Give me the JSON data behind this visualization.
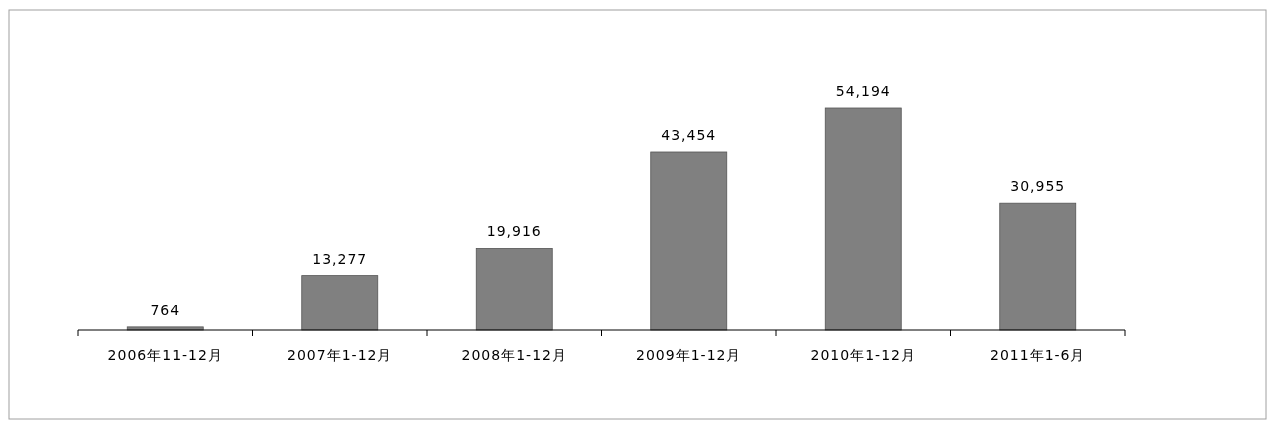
{
  "chart_data": {
    "type": "bar",
    "categories": [
      "2006年11-12月",
      "2007年1-12月",
      "2008年1-12月",
      "2009年1-12月",
      "2010年1-12月",
      "2011年1-6月"
    ],
    "values": [
      764,
      13277,
      19916,
      43454,
      54194,
      30955
    ],
    "value_labels": [
      "764",
      "13,277",
      "19,916",
      "43,454",
      "54,194",
      "30,955"
    ],
    "color": "#808080"
  }
}
